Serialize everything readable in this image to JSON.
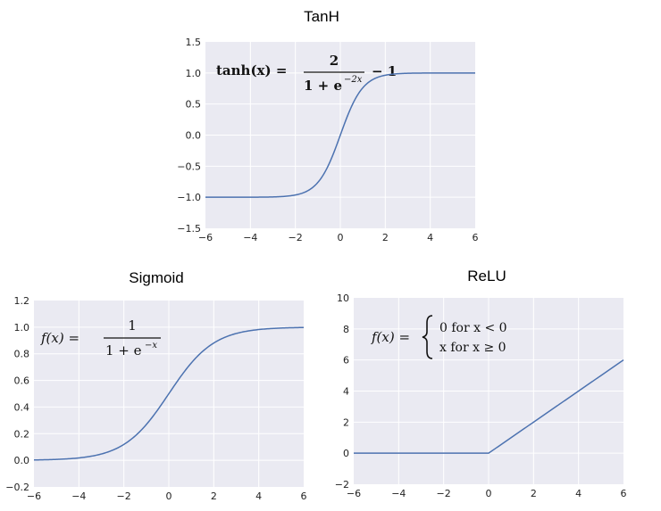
{
  "chart_data": [
    {
      "type": "line",
      "title": "TanH",
      "function": "tanh",
      "formula": {
        "lhs": "tanh(x) =",
        "num": "2",
        "den": "1 + e",
        "den_exp": "−2x",
        "tail": "− 1"
      },
      "xlim": [
        -6,
        6
      ],
      "ylim": [
        -1.5,
        1.5
      ],
      "xticks": [
        -6,
        -4,
        -2,
        0,
        2,
        4,
        6
      ],
      "xtick_labels": [
        "−6",
        "−4",
        "−2",
        "0",
        "2",
        "4",
        "6"
      ],
      "yticks": [
        -1.5,
        -1.0,
        -0.5,
        0.0,
        0.5,
        1.0,
        1.5
      ],
      "ytick_labels": [
        "−1.5",
        "−1.0",
        "−0.5",
        "0.0",
        "0.5",
        "1.0",
        "1.5"
      ],
      "grid": true,
      "color": "#4c72b0"
    },
    {
      "type": "line",
      "title": "Sigmoid",
      "function": "sigmoid",
      "formula": {
        "lhs": "f(x) =",
        "num": "1",
        "den": "1 + e",
        "den_exp": "−x"
      },
      "xlim": [
        -6,
        6
      ],
      "ylim": [
        -0.2,
        1.2
      ],
      "xticks": [
        -6,
        -4,
        -2,
        0,
        2,
        4,
        6
      ],
      "xtick_labels": [
        "−6",
        "−4",
        "−2",
        "0",
        "2",
        "4",
        "6"
      ],
      "yticks": [
        -0.2,
        0.0,
        0.2,
        0.4,
        0.6,
        0.8,
        1.0,
        1.2
      ],
      "ytick_labels": [
        "−0.2",
        "0.0",
        "0.2",
        "0.4",
        "0.6",
        "0.8",
        "1.0",
        "1.2"
      ],
      "grid": true,
      "color": "#4c72b0"
    },
    {
      "type": "line",
      "title": "ReLU",
      "function": "relu",
      "formula": {
        "lhs": "f(x) =",
        "case1": "0   for   x < 0",
        "case2": "x   for   x ≥ 0"
      },
      "xlim": [
        -6,
        6
      ],
      "ylim": [
        -2,
        10
      ],
      "xticks": [
        -6,
        -4,
        -2,
        0,
        2,
        4,
        6
      ],
      "xtick_labels": [
        "−6",
        "−4",
        "−2",
        "0",
        "2",
        "4",
        "6"
      ],
      "yticks": [
        -2,
        0,
        2,
        4,
        6,
        8,
        10
      ],
      "ytick_labels": [
        "−2",
        "0",
        "2",
        "4",
        "6",
        "8",
        "10"
      ],
      "grid": true,
      "color": "#4c72b0"
    }
  ]
}
